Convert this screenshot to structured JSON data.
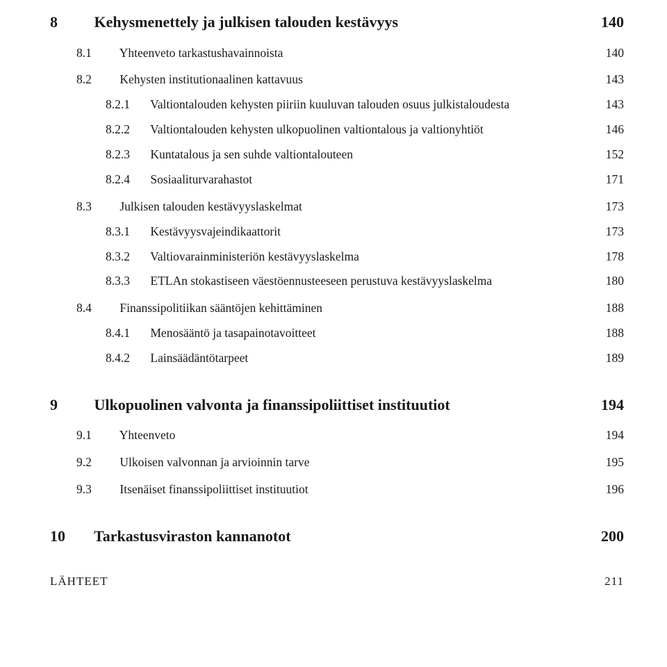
{
  "toc": {
    "ch8": {
      "num": "8",
      "title": "Kehysmenettely ja julkisen talouden kestävyys",
      "page": "140",
      "s1": {
        "num": "8.1",
        "title": "Yhteenveto tarkastushavainnoista",
        "page": "140"
      },
      "s2": {
        "num": "8.2",
        "title": "Kehysten institutionaalinen kattavuus",
        "page": "143",
        "sub1": {
          "num": "8.2.1",
          "title": "Valtiontalouden kehysten piiriin kuuluvan talouden osuus julkistaloudesta",
          "page": "143"
        },
        "sub2": {
          "num": "8.2.2",
          "title": "Valtiontalouden kehysten ulkopuolinen valtiontalous ja valtionyhtiöt",
          "page": "146"
        },
        "sub3": {
          "num": "8.2.3",
          "title": "Kuntatalous ja sen suhde valtiontalouteen",
          "page": "152"
        },
        "sub4": {
          "num": "8.2.4",
          "title": "Sosiaaliturvarahastot",
          "page": "171"
        }
      },
      "s3": {
        "num": "8.3",
        "title": "Julkisen talouden kestävyyslaskelmat",
        "page": "173",
        "sub1": {
          "num": "8.3.1",
          "title": "Kestävyysvajeindikaattorit",
          "page": "173"
        },
        "sub2": {
          "num": "8.3.2",
          "title": "Valtiovarainministeriön kestävyyslaskelma",
          "page": "178"
        },
        "sub3": {
          "num": "8.3.3",
          "title": "ETLAn stokastiseen väestöennusteeseen perustuva kestävyyslaskelma",
          "page": "180"
        }
      },
      "s4": {
        "num": "8.4",
        "title": "Finanssipolitiikan sääntöjen kehittäminen",
        "page": "188",
        "sub1": {
          "num": "8.4.1",
          "title": "Menosääntö ja tasapainotavoitteet",
          "page": "188"
        },
        "sub2": {
          "num": "8.4.2",
          "title": "Lainsäädäntötarpeet",
          "page": "189"
        }
      }
    },
    "ch9": {
      "num": "9",
      "title": "Ulkopuolinen valvonta ja finanssipoliittiset instituutiot",
      "page": "194",
      "s1": {
        "num": "9.1",
        "title": "Yhteenveto",
        "page": "194"
      },
      "s2": {
        "num": "9.2",
        "title": "Ulkoisen valvonnan ja arvioinnin tarve",
        "page": "195"
      },
      "s3": {
        "num": "9.3",
        "title": "Itsenäiset finanssipoliittiset instituutiot",
        "page": "196"
      }
    },
    "ch10": {
      "num": "10",
      "title": "Tarkastusviraston kannanotot",
      "page": "200"
    },
    "lahteet": {
      "title": "LÄHTEET",
      "page": "211"
    }
  }
}
